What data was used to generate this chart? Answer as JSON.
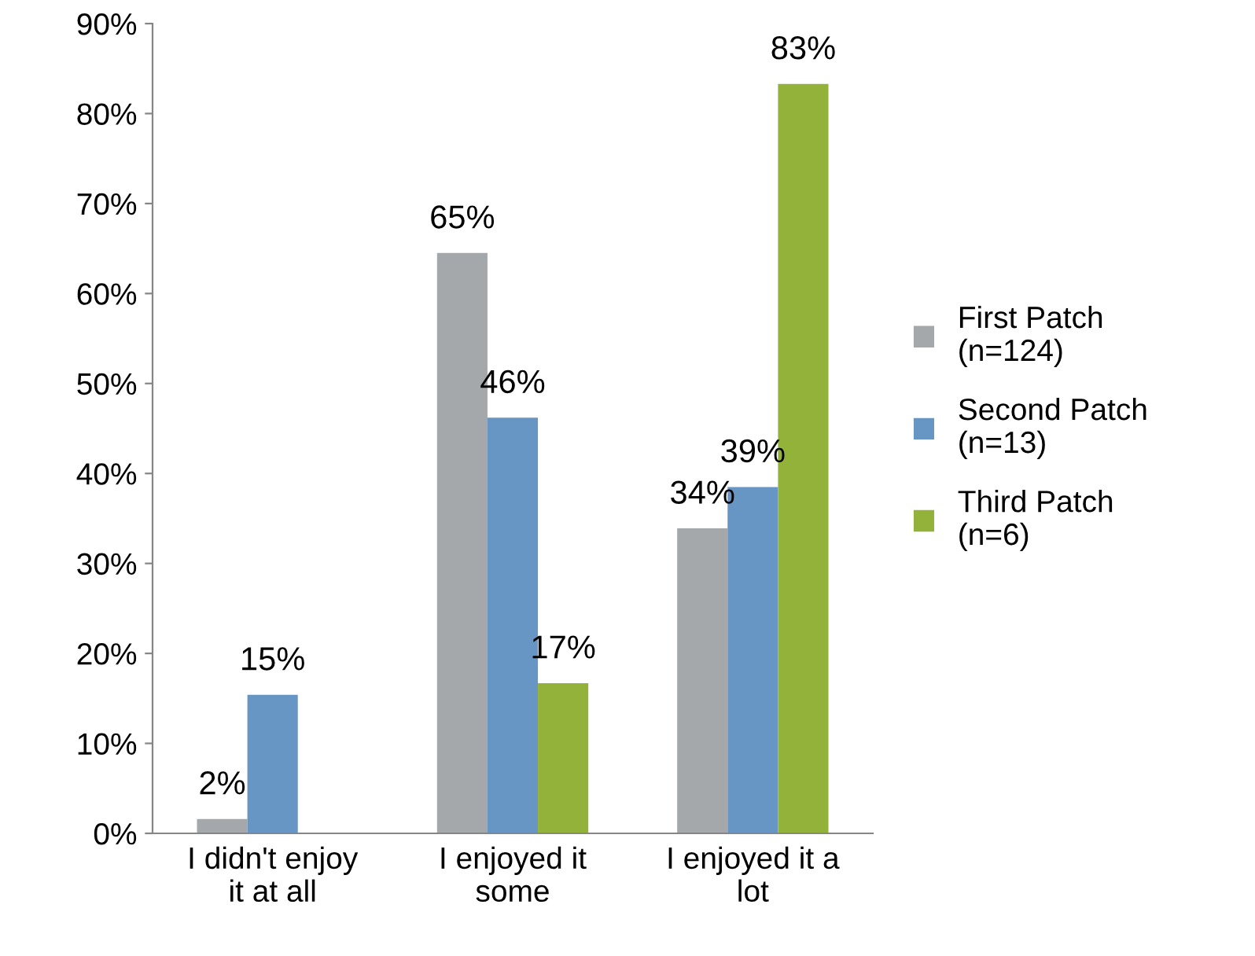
{
  "chart_data": {
    "type": "bar",
    "categories": [
      "I didn't enjoy\nit at all",
      "I enjoyed it\nsome",
      "I enjoyed it a\nlot"
    ],
    "series": [
      {
        "name": "First Patch\n(n=124)",
        "color": "#a5a8ab",
        "values": [
          1.6,
          64.5,
          33.9
        ],
        "value_labels": [
          "2%",
          "65%",
          "34%"
        ]
      },
      {
        "name": "Second Patch\n(n=13)",
        "color": "#6896c4",
        "values": [
          15.4,
          46.2,
          38.5
        ],
        "value_labels": [
          "15%",
          "46%",
          "39%"
        ]
      },
      {
        "name": "Third Patch\n(n=6)",
        "color": "#93b23a",
        "values": [
          null,
          16.7,
          83.3
        ],
        "value_labels": [
          null,
          "17%",
          "83%"
        ]
      }
    ],
    "ylim": [
      0,
      90
    ],
    "yticks": [
      {
        "value": 0,
        "label": "0%"
      },
      {
        "value": 10,
        "label": "10%"
      },
      {
        "value": 20,
        "label": "20%"
      },
      {
        "value": 30,
        "label": "30%"
      },
      {
        "value": 40,
        "label": "40%"
      },
      {
        "value": 50,
        "label": "50%"
      },
      {
        "value": 60,
        "label": "60%"
      },
      {
        "value": 70,
        "label": "70%"
      },
      {
        "value": 80,
        "label": "80%"
      },
      {
        "value": 90,
        "label": "90%"
      }
    ],
    "grid": false,
    "legend": "right"
  }
}
